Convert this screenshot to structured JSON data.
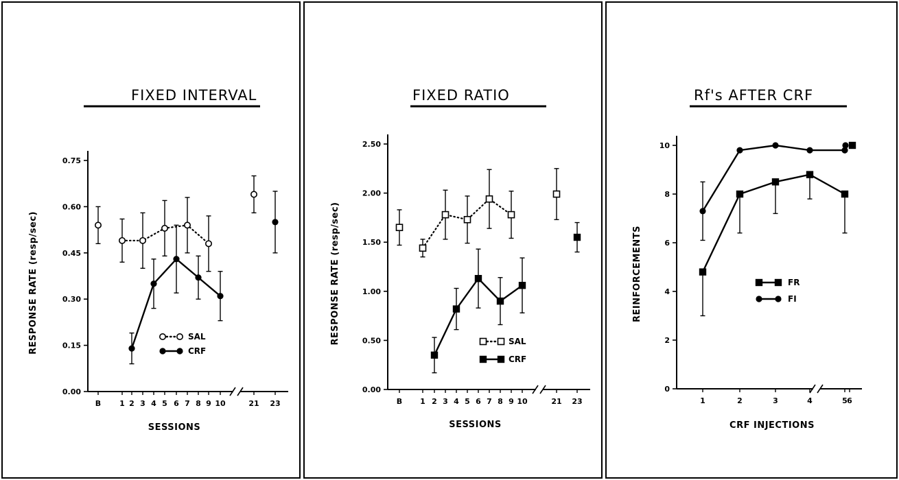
{
  "chart_data": [
    {
      "type": "line",
      "title": "FIXED INTERVAL",
      "xlabel": "SESSIONS",
      "ylabel": "RESPONSE RATE (resp/sec)",
      "ylim": [
        0,
        0.75
      ],
      "yticks": [
        "0.00",
        "0.15",
        "0.30",
        "0.45",
        "0.60",
        "0.75"
      ],
      "yticks_values": [
        0,
        0.15,
        0.3,
        0.45,
        0.6,
        0.75
      ],
      "xticks": [
        "B",
        "1",
        "2",
        "3",
        "4",
        "5",
        "6",
        "7",
        "8",
        "9",
        "10",
        "21",
        "23"
      ],
      "axis_break": true,
      "series": [
        {
          "name": "SAL",
          "marker": "open-circle",
          "line": "dotted",
          "points": [
            {
              "x": "B",
              "y": 0.54,
              "err": 0.06,
              "connected": false
            },
            {
              "x": "1",
              "y": 0.49,
              "err": 0.07,
              "connected": true
            },
            {
              "x": "3",
              "y": 0.49,
              "err": 0.09,
              "connected": true
            },
            {
              "x": "5",
              "y": 0.53,
              "err": 0.09,
              "connected": true
            },
            {
              "x": "7",
              "y": 0.54,
              "err": 0.09,
              "connected": true
            },
            {
              "x": "9",
              "y": 0.48,
              "err": 0.09,
              "connected": true
            },
            {
              "x": "21",
              "y": 0.64,
              "err": 0.06,
              "connected": false
            }
          ]
        },
        {
          "name": "CRF",
          "marker": "filled-circle",
          "line": "solid",
          "points": [
            {
              "x": "2",
              "y": 0.14,
              "err": 0.05,
              "connected": true
            },
            {
              "x": "4",
              "y": 0.35,
              "err": 0.08,
              "connected": true
            },
            {
              "x": "6",
              "y": 0.43,
              "err": 0.11,
              "connected": true
            },
            {
              "x": "8",
              "y": 0.37,
              "err": 0.07,
              "connected": true
            },
            {
              "x": "10",
              "y": 0.31,
              "err": 0.08,
              "connected": true
            },
            {
              "x": "23",
              "y": 0.55,
              "err": 0.1,
              "connected": false
            }
          ]
        }
      ],
      "legend": [
        {
          "label": "SAL",
          "marker": "open-circle",
          "line": "dotted"
        },
        {
          "label": "CRF",
          "marker": "filled-circle",
          "line": "solid"
        }
      ],
      "legend_position": "lower-right"
    },
    {
      "type": "line",
      "title": "FIXED RATIO",
      "xlabel": "SESSIONS",
      "ylabel": "RESPONSE RATE (resp/sec)",
      "ylim": [
        0,
        2.5
      ],
      "yticks": [
        "0.00",
        "0.50",
        "1.00",
        "1.50",
        "2.00",
        "2.50"
      ],
      "yticks_values": [
        0,
        0.5,
        1.0,
        1.5,
        2.0,
        2.5
      ],
      "xticks": [
        "B",
        "1",
        "2",
        "3",
        "4",
        "5",
        "6",
        "7",
        "8",
        "9",
        "10",
        "21",
        "23"
      ],
      "axis_break": true,
      "series": [
        {
          "name": "SAL",
          "marker": "open-square",
          "line": "dotted",
          "points": [
            {
              "x": "B",
              "y": 1.65,
              "err": 0.18,
              "connected": false
            },
            {
              "x": "1",
              "y": 1.44,
              "err": 0.09,
              "connected": true
            },
            {
              "x": "3",
              "y": 1.78,
              "err": 0.25,
              "connected": true
            },
            {
              "x": "5",
              "y": 1.73,
              "err": 0.24,
              "connected": true
            },
            {
              "x": "7",
              "y": 1.94,
              "err": 0.3,
              "connected": true
            },
            {
              "x": "9",
              "y": 1.78,
              "err": 0.24,
              "connected": true
            },
            {
              "x": "21",
              "y": 1.99,
              "err": 0.26,
              "connected": false
            }
          ]
        },
        {
          "name": "CRF",
          "marker": "filled-square",
          "line": "solid",
          "points": [
            {
              "x": "2",
              "y": 0.35,
              "err": 0.18,
              "connected": true
            },
            {
              "x": "4",
              "y": 0.82,
              "err": 0.21,
              "connected": true
            },
            {
              "x": "6",
              "y": 1.13,
              "err": 0.3,
              "connected": true
            },
            {
              "x": "8",
              "y": 0.9,
              "err": 0.24,
              "connected": true
            },
            {
              "x": "10",
              "y": 1.06,
              "err": 0.28,
              "connected": true
            },
            {
              "x": "23",
              "y": 1.55,
              "err": 0.15,
              "connected": false
            }
          ]
        }
      ],
      "legend": [
        {
          "label": "SAL",
          "marker": "open-square",
          "line": "dotted"
        },
        {
          "label": "CRF",
          "marker": "filled-square",
          "line": "solid"
        }
      ],
      "legend_position": "lower-right"
    },
    {
      "type": "line",
      "title": "Rf's AFTER CRF",
      "xlabel": "CRF INJECTIONS",
      "ylabel": "REINFORCEMENTS",
      "ylim": [
        0,
        10
      ],
      "yticks": [
        "0",
        "2",
        "4",
        "6",
        "8",
        "10"
      ],
      "yticks_values": [
        0,
        2,
        4,
        6,
        8,
        10
      ],
      "xticks": [
        "1",
        "2",
        "3",
        "4",
        "5",
        "6"
      ],
      "axis_break": true,
      "series": [
        {
          "name": "FR",
          "marker": "filled-square",
          "line": "solid",
          "points": [
            {
              "x": "1",
              "y": 4.8,
              "err": 1.8,
              "connected": true
            },
            {
              "x": "2",
              "y": 8.0,
              "err": 1.6,
              "connected": true
            },
            {
              "x": "3",
              "y": 8.5,
              "err": 1.3,
              "connected": true
            },
            {
              "x": "4",
              "y": 8.8,
              "err": 1.0,
              "connected": true
            },
            {
              "x": "5",
              "y": 8.0,
              "err": 1.6,
              "connected": true
            },
            {
              "x": "6",
              "y": 10.0,
              "err": 0,
              "connected": false
            }
          ]
        },
        {
          "name": "FI",
          "marker": "filled-circle",
          "line": "solid",
          "points": [
            {
              "x": "1",
              "y": 7.3,
              "err": 1.2,
              "connected": true
            },
            {
              "x": "2",
              "y": 9.8,
              "err": 0,
              "connected": true
            },
            {
              "x": "3",
              "y": 10.0,
              "err": 0,
              "connected": true
            },
            {
              "x": "4",
              "y": 9.8,
              "err": 0,
              "connected": true
            },
            {
              "x": "5",
              "y": 9.8,
              "err": 0,
              "connected": true
            },
            {
              "x": "6",
              "y": 10.0,
              "err": 0,
              "connected": false
            }
          ]
        }
      ],
      "legend": [
        {
          "label": "FR",
          "marker": "filled-square",
          "line": "solid"
        },
        {
          "label": "FI",
          "marker": "filled-circle",
          "line": "solid"
        }
      ],
      "legend_position": "center-right"
    }
  ]
}
